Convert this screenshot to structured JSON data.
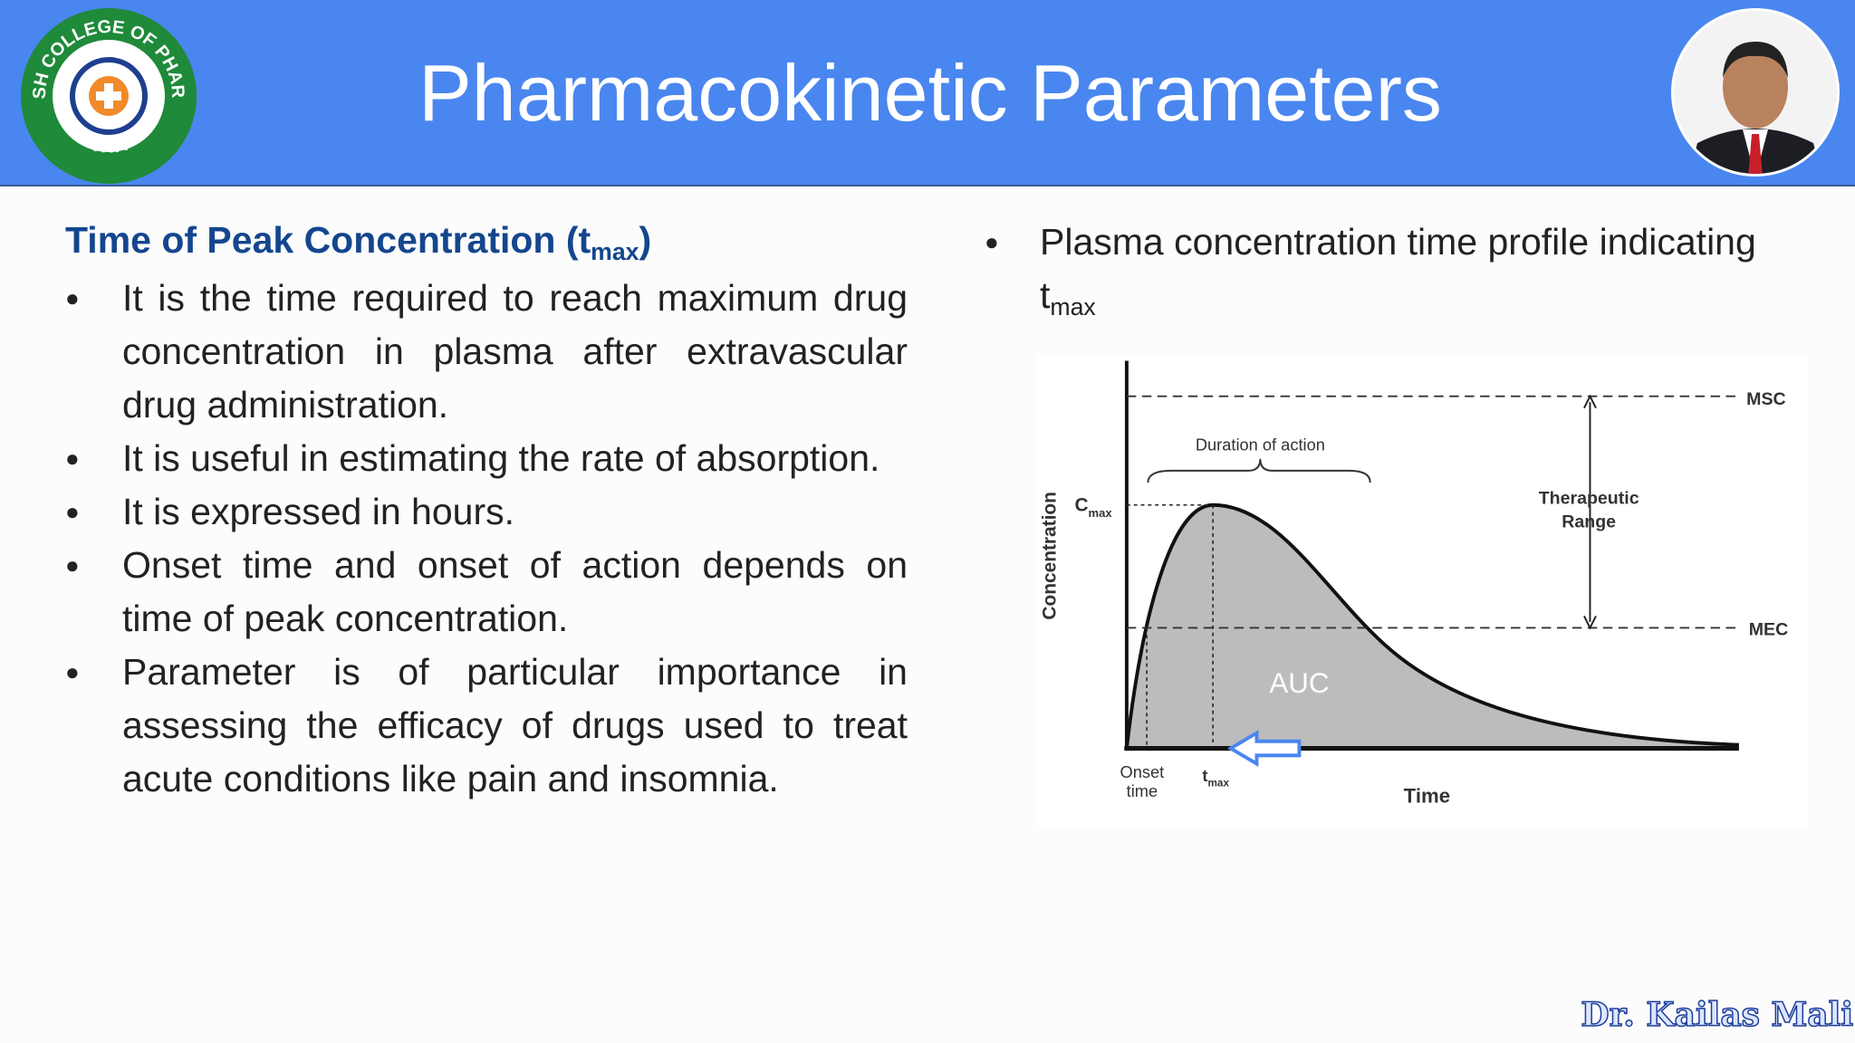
{
  "header": {
    "title": "Pharmacokinetic Parameters",
    "logo": {
      "name": "ADARSH COLLEGE OF PHARMACY",
      "place": "VITA"
    }
  },
  "left": {
    "heading": {
      "text": "Time of Peak Concentration (t",
      "sub": "max",
      "close": ")"
    },
    "bullets": [
      "It is the time required to reach maximum drug concentration in plasma after extravascular drug administration.",
      "It is useful in estimating the rate of absorption.",
      "It is expressed in hours.",
      "Onset time and onset of action depends on time of peak concentration.",
      "Parameter is of particular importance in assessing the efficacy of drugs used to treat acute conditions like pain and insomnia."
    ]
  },
  "right": {
    "bullet": {
      "text": "Plasma concentration time profile indicating",
      "t": "t",
      "sub": "max"
    }
  },
  "figure": {
    "y_axis": "Concentration",
    "x_axis": "Time",
    "cmax": {
      "text": "C",
      "sub": "max"
    },
    "duration": "Duration of action",
    "therapeutic": [
      "Therapeutic",
      "Range"
    ],
    "msc": "MSC",
    "mec": "MEC",
    "auc": "AUC",
    "onset": [
      "Onset",
      "time"
    ],
    "tmax": {
      "text": "t",
      "sub": "max"
    }
  },
  "footer": {
    "author": "Dr. Kailas Mali"
  }
}
